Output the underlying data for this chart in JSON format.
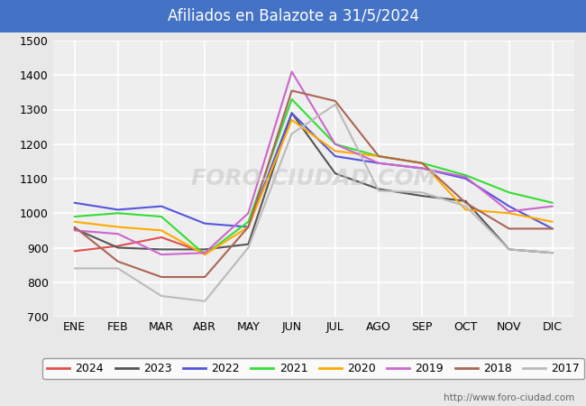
{
  "title": "Afiliados en Balazote a 31/5/2024",
  "title_bg_color": "#4472c4",
  "title_text_color": "white",
  "ylim": [
    700,
    1500
  ],
  "yticks": [
    700,
    800,
    900,
    1000,
    1100,
    1200,
    1300,
    1400,
    1500
  ],
  "months": [
    "ENE",
    "FEB",
    "MAR",
    "ABR",
    "MAY",
    "JUN",
    "JUL",
    "AGO",
    "SEP",
    "OCT",
    "NOV",
    "DIC"
  ],
  "watermark": "FORO-CIUDAD.COM",
  "url": "http://www.foro-ciudad.com",
  "series": {
    "2024": {
      "color": "#e05050",
      "data": [
        890,
        905,
        930,
        885,
        null,
        null,
        null,
        null,
        null,
        null,
        null,
        null
      ]
    },
    "2023": {
      "color": "#555555",
      "data": [
        955,
        900,
        895,
        895,
        910,
        1290,
        1115,
        1070,
        1050,
        1035,
        895,
        885
      ]
    },
    "2022": {
      "color": "#5555dd",
      "data": [
        1030,
        1010,
        1020,
        970,
        960,
        1290,
        1165,
        1145,
        1130,
        1100,
        1020,
        955
      ]
    },
    "2021": {
      "color": "#33dd33",
      "data": [
        990,
        1000,
        990,
        880,
        975,
        1330,
        1200,
        1165,
        1145,
        1110,
        1060,
        1030
      ]
    },
    "2020": {
      "color": "#ffaa00",
      "data": [
        975,
        960,
        950,
        880,
        960,
        1270,
        1180,
        1165,
        1145,
        1010,
        1000,
        975
      ]
    },
    "2019": {
      "color": "#cc66cc",
      "data": [
        950,
        940,
        880,
        885,
        1000,
        1410,
        1200,
        1145,
        1130,
        1105,
        1005,
        1020
      ]
    },
    "2018": {
      "color": "#aa6655",
      "data": [
        960,
        860,
        815,
        815,
        960,
        1355,
        1325,
        1165,
        1145,
        1030,
        955,
        955
      ]
    },
    "2017": {
      "color": "#bbbbbb",
      "data": [
        840,
        840,
        760,
        745,
        900,
        1230,
        1315,
        1065,
        1060,
        1020,
        895,
        885
      ]
    }
  },
  "legend_order": [
    "2024",
    "2023",
    "2022",
    "2021",
    "2020",
    "2019",
    "2018",
    "2017"
  ],
  "background_color": "#e8e8e8",
  "plot_bg_color": "#eeeeee",
  "grid_color": "white",
  "font_size": 9
}
